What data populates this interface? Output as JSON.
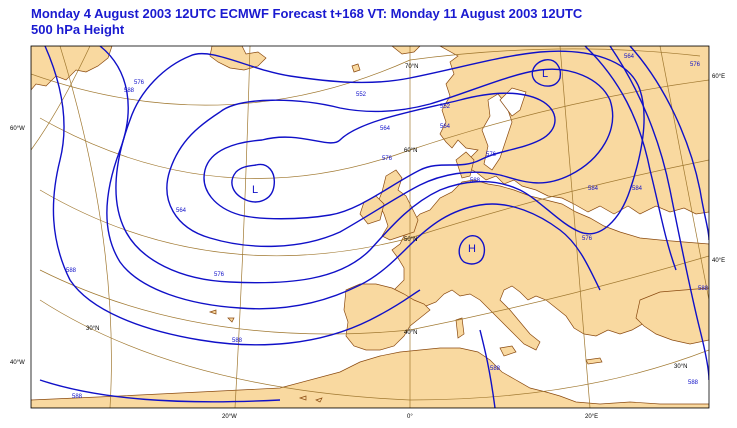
{
  "title": {
    "line1": "Monday 4 August 2003 12UTC ECMWF Forecast t+168  VT: Monday 11 August 2003 12UTC",
    "line2": "500 hPa Height"
  },
  "colors": {
    "contour": "#1010c8",
    "land": "#f9d9a0",
    "sea": "#ffffff",
    "grid": "#a07830",
    "coast": "#8a4a10",
    "title": "#1a1ad0"
  },
  "grid_labels": {
    "lat": [
      "70°N",
      "60°N",
      "50°N",
      "40°N",
      "30°N"
    ],
    "lon": [
      "20°W",
      "0°",
      "20°E"
    ],
    "left": [
      "60°W",
      "40°W"
    ],
    "right": [
      "60°E",
      "40°E"
    ],
    "right_lower": [
      "30°N"
    ]
  },
  "pressure_centers": [
    {
      "type": "L",
      "name": "low-atlantic"
    },
    {
      "type": "L",
      "name": "low-scandinavia"
    },
    {
      "type": "H",
      "name": "high-france"
    }
  ],
  "contour_labels": [
    "552",
    "564",
    "564",
    "576",
    "576",
    "576",
    "588",
    "588",
    "588",
    "588",
    "552",
    "564",
    "576",
    "584",
    "564",
    "576",
    "584",
    "588",
    "588",
    "576",
    "588",
    "588"
  ]
}
